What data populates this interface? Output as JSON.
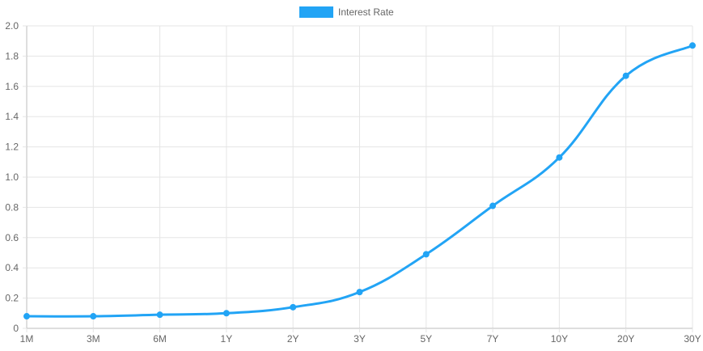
{
  "chart_data": {
    "type": "line",
    "categories": [
      "1M",
      "3M",
      "6M",
      "1Y",
      "2Y",
      "3Y",
      "5Y",
      "7Y",
      "10Y",
      "20Y",
      "30Y"
    ],
    "series": [
      {
        "name": "Interest Rate",
        "values": [
          0.08,
          0.08,
          0.09,
          0.1,
          0.14,
          0.24,
          0.49,
          0.81,
          1.13,
          1.67,
          1.87
        ],
        "color": "#22a4f5"
      }
    ],
    "y_ticks": [
      "0",
      "0.2",
      "0.4",
      "0.6",
      "0.8",
      "1.0",
      "1.2",
      "1.4",
      "1.6",
      "1.8",
      "2.0"
    ],
    "ylim": [
      0,
      2.0
    ],
    "grid": true,
    "legend_position": "top-center",
    "smooth": true,
    "title": "",
    "xlabel": "",
    "ylabel": ""
  },
  "legend": {
    "label": "Interest Rate",
    "color": "#22a4f5"
  },
  "colors": {
    "grid": "#e5e5e5",
    "axis": "#bdbdbd",
    "tick_text": "#666666"
  }
}
